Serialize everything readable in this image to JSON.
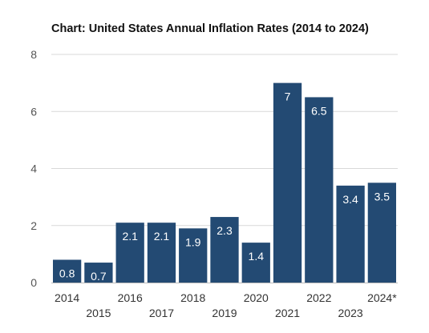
{
  "chart_data": {
    "type": "bar",
    "title": "Chart: United States Annual Inflation Rates (2014 to 2024)",
    "categories": [
      "2014",
      "2015",
      "2016",
      "2017",
      "2018",
      "2019",
      "2020",
      "2021",
      "2022",
      "2023",
      "2024*"
    ],
    "values": [
      0.8,
      0.7,
      2.1,
      2.1,
      1.9,
      2.3,
      1.4,
      7,
      6.5,
      3.4,
      3.5
    ],
    "value_labels": [
      "0.8",
      "0.7",
      "2.1",
      "2.1",
      "1.9",
      "2.3",
      "1.4",
      "7",
      "6.5",
      "3.4",
      "3.5"
    ],
    "ylim": [
      0,
      8
    ],
    "yticks": [
      0,
      2,
      4,
      6,
      8
    ],
    "xlabel": "",
    "ylabel": "",
    "grid": true,
    "bar_color": "#234a73",
    "grid_color": "#d9d9d9"
  }
}
